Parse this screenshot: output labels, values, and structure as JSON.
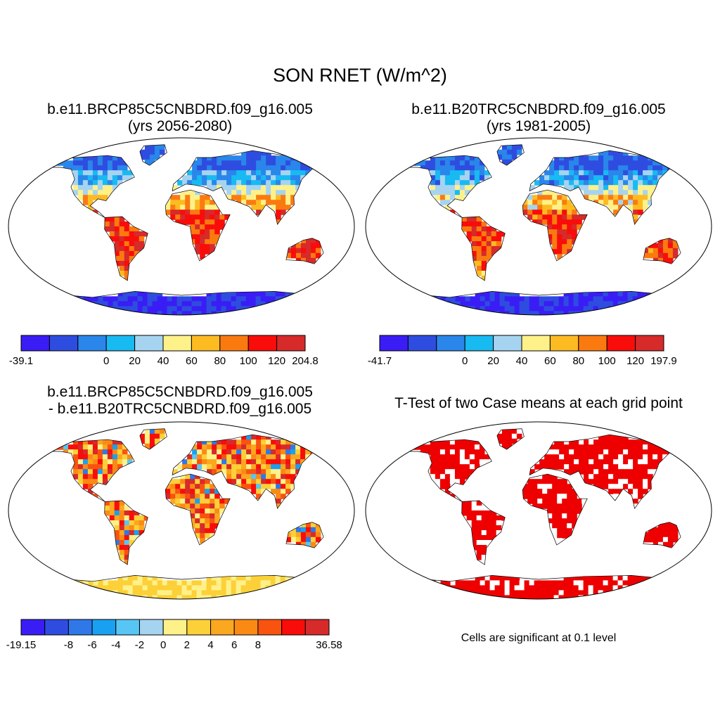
{
  "chart_data": [
    {
      "type": "heatmap",
      "panel_id": "case1",
      "title_line1": "b.e11.BRCP85C5CNBDRD.f09_g16.005",
      "title_line2": "(yrs 2056-2080)",
      "colorbar": {
        "colors": [
          "#3a1df5",
          "#2e4de0",
          "#2a86ea",
          "#18baf2",
          "#a6d4f0",
          "#fff18a",
          "#fdbb22",
          "#fb7a10",
          "#f80d0a",
          "#d72a2a"
        ],
        "tick_labels": [
          "-39.1",
          "0",
          "20",
          "40",
          "60",
          "80",
          "100",
          "120",
          "204.8"
        ],
        "min": -39.1,
        "max": 204.8,
        "levels": [
          0,
          20,
          40,
          60,
          80,
          100,
          120
        ]
      }
    },
    {
      "type": "heatmap",
      "panel_id": "case2",
      "title_line1": "b.e11.B20TRC5CNBDRD.f09_g16.005",
      "title_line2": "(yrs 1981-2005)",
      "colorbar": {
        "colors": [
          "#3a1df5",
          "#2e4de0",
          "#2a86ea",
          "#18baf2",
          "#a6d4f0",
          "#fff18a",
          "#fdbb22",
          "#fb7a10",
          "#f80d0a",
          "#d72a2a"
        ],
        "tick_labels": [
          "-41.7",
          "0",
          "20",
          "40",
          "60",
          "80",
          "100",
          "120",
          "197.9"
        ],
        "min": -41.7,
        "max": 197.9,
        "levels": [
          0,
          20,
          40,
          60,
          80,
          100,
          120
        ]
      }
    },
    {
      "type": "heatmap",
      "panel_id": "diff",
      "title_line1": "b.e11.BRCP85C5CNBDRD.f09_g16.005",
      "title_line2": "- b.e11.B20TRC5CNBDRD.f09_g16.005",
      "colorbar": {
        "colors": [
          "#3a1df5",
          "#2e4de0",
          "#2f78e8",
          "#1aa0f0",
          "#58c6f4",
          "#a6d4f0",
          "#fff18a",
          "#fcd038",
          "#fba71f",
          "#fb8a14",
          "#f95310",
          "#f80d0a",
          "#d72a2a"
        ],
        "tick_labels": [
          "-19.15",
          "-8",
          "-6",
          "-4",
          "-2",
          "0",
          "2",
          "4",
          "6",
          "8",
          "36.58"
        ],
        "min": -19.15,
        "max": 36.58,
        "levels": [
          -8,
          -6,
          -4,
          -2,
          0,
          2,
          4,
          6,
          8
        ]
      }
    },
    {
      "type": "heatmap",
      "panel_id": "ttest",
      "title_line1": "T-Test of two Case means at each grid point",
      "note": "Cells are significant at 0.1 level",
      "significant_color": "#ee0000"
    }
  ],
  "page": {
    "title": "SON RNET (W/m^2)"
  },
  "colors": {
    "coast": "#000000",
    "ocean": "#ffffff"
  }
}
